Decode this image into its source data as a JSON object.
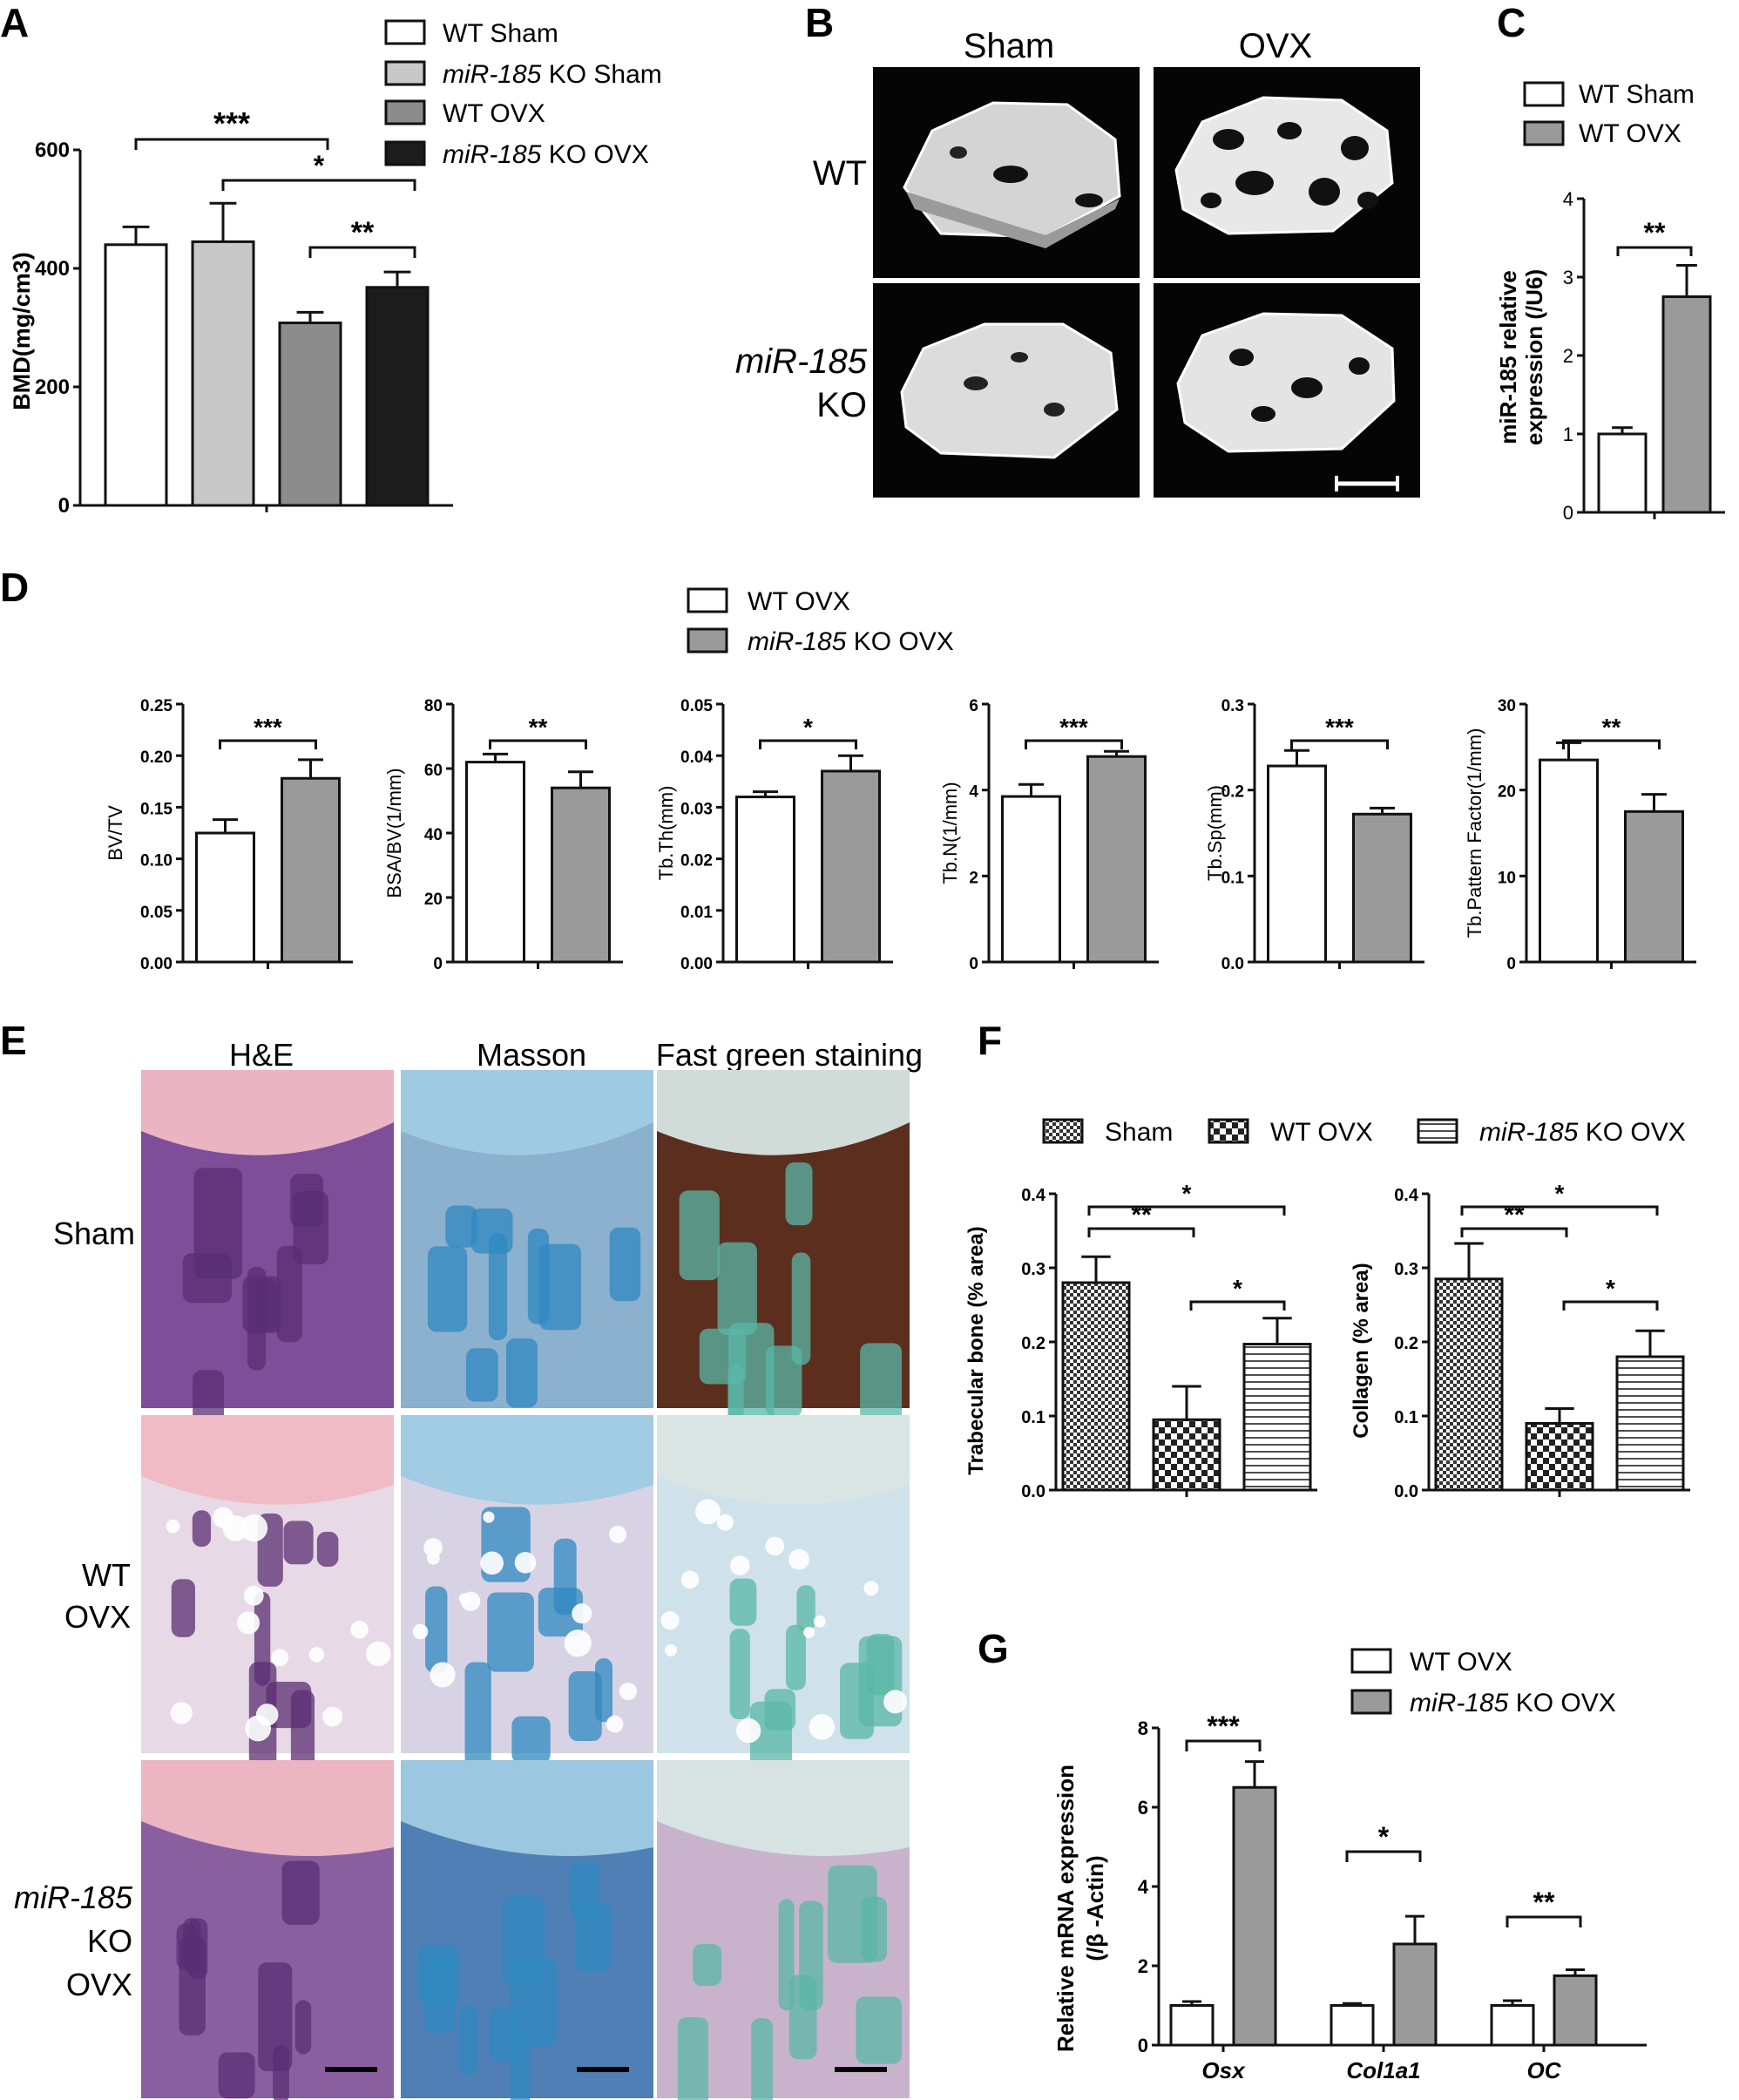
{
  "colors": {
    "wt_sham": "#ffffff",
    "ko_sham": "#c8c8c8",
    "wt_ovx": "#8c8c8c",
    "ko_ovx": "#1c1c1c",
    "gray_bar": "#9a9a9a",
    "stroke": "#111111",
    "he_bg": "#b7a6c9",
    "he_fg": "#5a2d73",
    "masson_bg": "#a7c2d2",
    "masson_fg": "#2f88c0",
    "fg_bg": "#6a3a26",
    "fg_fg": "#59b7a7"
  },
  "panels": {
    "A": "A",
    "B": "B",
    "C": "C",
    "D": "D",
    "E": "E",
    "F": "F",
    "G": "G"
  },
  "panelA": {
    "legend": [
      "WT Sham",
      "miR-185 KO Sham",
      "WT OVX",
      "miR-185 KO OVX"
    ],
    "legend_italic": [
      "",
      "miR-185",
      "",
      "miR-185"
    ],
    "legend_rest": [
      "WT Sham",
      " KO Sham",
      "WT OVX",
      " KO OVX"
    ],
    "ylabel": "BMD(mg/cm3)",
    "sig": [
      "***",
      "*",
      "**"
    ]
  },
  "panelB": {
    "col_labels": [
      "Sham",
      "OVX"
    ],
    "row_labels": [
      "WT",
      "miR-185",
      "KO"
    ]
  },
  "panelC": {
    "legend": [
      "WT Sham",
      "WT OVX"
    ],
    "ylabel_line1": "miR-185 relative",
    "ylabel_line2": "expression (/U6)",
    "sig": [
      "**"
    ]
  },
  "panelD": {
    "legend_italic": [
      "",
      "miR-185"
    ],
    "legend_rest": [
      "WT OVX",
      " KO OVX"
    ]
  },
  "panelE": {
    "col_labels": [
      "H&E",
      "Masson",
      "Fast green staining"
    ],
    "row_labels": [
      "Sham",
      "WT",
      "OVX",
      "miR-185",
      "KO",
      "OVX"
    ]
  },
  "panelF": {
    "legend": [
      "Sham",
      "WT OVX",
      "miR-185",
      " KO OVX"
    ]
  },
  "panelG": {
    "legend_italic": [
      "",
      "miR-185"
    ],
    "legend_rest": [
      "WT OVX",
      " KO OVX"
    ]
  },
  "chart_data": [
    {
      "id": "A",
      "type": "bar",
      "categories": [
        "WT Sham",
        "miR-185 KO Sham",
        "WT OVX",
        "miR-185 KO OVX"
      ],
      "values": [
        440,
        445,
        308,
        368
      ],
      "errors": [
        30,
        65,
        18,
        26
      ],
      "ylabel": "BMD(mg/cm3)",
      "ylim": [
        0,
        600
      ],
      "yticks": [
        0,
        200,
        400,
        600
      ],
      "significance": [
        {
          "from": 0,
          "to": 2,
          "label": "***"
        },
        {
          "from": 1,
          "to": 3,
          "label": "*"
        },
        {
          "from": 2,
          "to": 3,
          "label": "**"
        }
      ]
    },
    {
      "id": "C",
      "type": "bar",
      "categories": [
        "WT Sham",
        "WT OVX"
      ],
      "values": [
        1.0,
        2.75
      ],
      "errors": [
        0.08,
        0.4
      ],
      "ylabel": "miR-185 relative expression (/U6)",
      "ylim": [
        0,
        4
      ],
      "yticks": [
        0,
        1,
        2,
        3,
        4
      ],
      "significance": [
        {
          "from": 0,
          "to": 1,
          "label": "**"
        }
      ]
    },
    {
      "id": "D1",
      "type": "bar",
      "categories": [
        "WT OVX",
        "miR-185 KO OVX"
      ],
      "values": [
        0.125,
        0.178
      ],
      "errors": [
        0.013,
        0.018
      ],
      "ylabel": "BV/TV",
      "ylim": [
        0,
        0.25
      ],
      "yticks": [
        "0.00",
        "0.05",
        "0.10",
        "0.15",
        "0.20",
        "0.25"
      ],
      "significance": [
        {
          "from": 0,
          "to": 1,
          "label": "***"
        }
      ]
    },
    {
      "id": "D2",
      "type": "bar",
      "categories": [
        "WT OVX",
        "miR-185 KO OVX"
      ],
      "values": [
        62,
        54
      ],
      "errors": [
        2.5,
        5
      ],
      "ylabel": "BSA/BV(1/mm)",
      "ylim": [
        0,
        80
      ],
      "yticks": [
        "0",
        "20",
        "40",
        "60",
        "80"
      ],
      "significance": [
        {
          "from": 0,
          "to": 1,
          "label": "**"
        }
      ]
    },
    {
      "id": "D3",
      "type": "bar",
      "categories": [
        "WT OVX",
        "miR-185 KO OVX"
      ],
      "values": [
        0.032,
        0.037
      ],
      "errors": [
        0.001,
        0.003
      ],
      "ylabel": "Tb.Th(mm)",
      "ylim": [
        0,
        0.05
      ],
      "yticks": [
        "0.00",
        "0.01",
        "0.02",
        "0.03",
        "0.04",
        "0.05"
      ],
      "significance": [
        {
          "from": 0,
          "to": 1,
          "label": "*"
        }
      ]
    },
    {
      "id": "D4",
      "type": "bar",
      "categories": [
        "WT OVX",
        "miR-185 KO OVX"
      ],
      "values": [
        3.85,
        4.78
      ],
      "errors": [
        0.28,
        0.12
      ],
      "ylabel": "Tb.N(1/mm)",
      "ylim": [
        0,
        6
      ],
      "yticks": [
        "0",
        "2",
        "4",
        "6"
      ],
      "significance": [
        {
          "from": 0,
          "to": 1,
          "label": "***"
        }
      ]
    },
    {
      "id": "D5",
      "type": "bar",
      "categories": [
        "WT OVX",
        "miR-185 KO OVX"
      ],
      "values": [
        0.228,
        0.172
      ],
      "errors": [
        0.018,
        0.007
      ],
      "ylabel": "Tb.Sp(mm)",
      "ylim": [
        0,
        0.3
      ],
      "yticks": [
        "0.0",
        "0.1",
        "0.2",
        "0.3"
      ],
      "significance": [
        {
          "from": 0,
          "to": 1,
          "label": "***"
        }
      ]
    },
    {
      "id": "D6",
      "type": "bar",
      "categories": [
        "WT OVX",
        "miR-185 KO OVX"
      ],
      "values": [
        23.5,
        17.5
      ],
      "errors": [
        2.0,
        2.0
      ],
      "ylabel": "Tb.Pattern Factor(1/mm)",
      "ylim": [
        0,
        30
      ],
      "yticks": [
        "0",
        "10",
        "20",
        "30"
      ],
      "significance": [
        {
          "from": 0,
          "to": 1,
          "label": "**"
        }
      ]
    },
    {
      "id": "F1",
      "type": "bar",
      "categories": [
        "Sham",
        "WT OVX",
        "miR-185 KO OVX"
      ],
      "values": [
        0.28,
        0.095,
        0.197
      ],
      "errors": [
        0.035,
        0.045,
        0.035
      ],
      "ylabel": "Trabecular bone (% area)",
      "ylim": [
        0,
        0.4
      ],
      "yticks": [
        "0.0",
        "0.1",
        "0.2",
        "0.3",
        "0.4"
      ],
      "significance": [
        {
          "from": 0,
          "to": 1,
          "label": "**"
        },
        {
          "from": 0,
          "to": 2,
          "label": "*"
        },
        {
          "from": 1,
          "to": 2,
          "label": "*"
        }
      ]
    },
    {
      "id": "F2",
      "type": "bar",
      "categories": [
        "Sham",
        "WT OVX",
        "miR-185 KO OVX"
      ],
      "values": [
        0.285,
        0.09,
        0.18
      ],
      "errors": [
        0.048,
        0.02,
        0.035
      ],
      "ylabel": "Collagen (% area)",
      "ylim": [
        0,
        0.4
      ],
      "yticks": [
        "0.0",
        "0.1",
        "0.2",
        "0.3",
        "0.4"
      ],
      "significance": [
        {
          "from": 0,
          "to": 1,
          "label": "**"
        },
        {
          "from": 0,
          "to": 2,
          "label": "*"
        },
        {
          "from": 1,
          "to": 2,
          "label": "*"
        }
      ]
    },
    {
      "id": "G",
      "type": "bar",
      "groups": [
        "Osx",
        "Col1a1",
        "OC"
      ],
      "series": [
        {
          "name": "WT OVX",
          "values": [
            1.0,
            1.0,
            1.0
          ],
          "errors": [
            0.1,
            0.05,
            0.12
          ]
        },
        {
          "name": "miR-185 KO OVX",
          "values": [
            6.5,
            2.55,
            1.75
          ],
          "errors": [
            0.65,
            0.7,
            0.15
          ]
        }
      ],
      "ylabel_line1": "Relative mRNA expression",
      "ylabel_line2": "(/β -Actin)",
      "ylim": [
        0,
        8
      ],
      "yticks": [
        "0",
        "2",
        "4",
        "6",
        "8"
      ],
      "significance": [
        {
          "group": 0,
          "label": "***"
        },
        {
          "group": 1,
          "label": "*"
        },
        {
          "group": 2,
          "label": "**"
        }
      ]
    }
  ]
}
